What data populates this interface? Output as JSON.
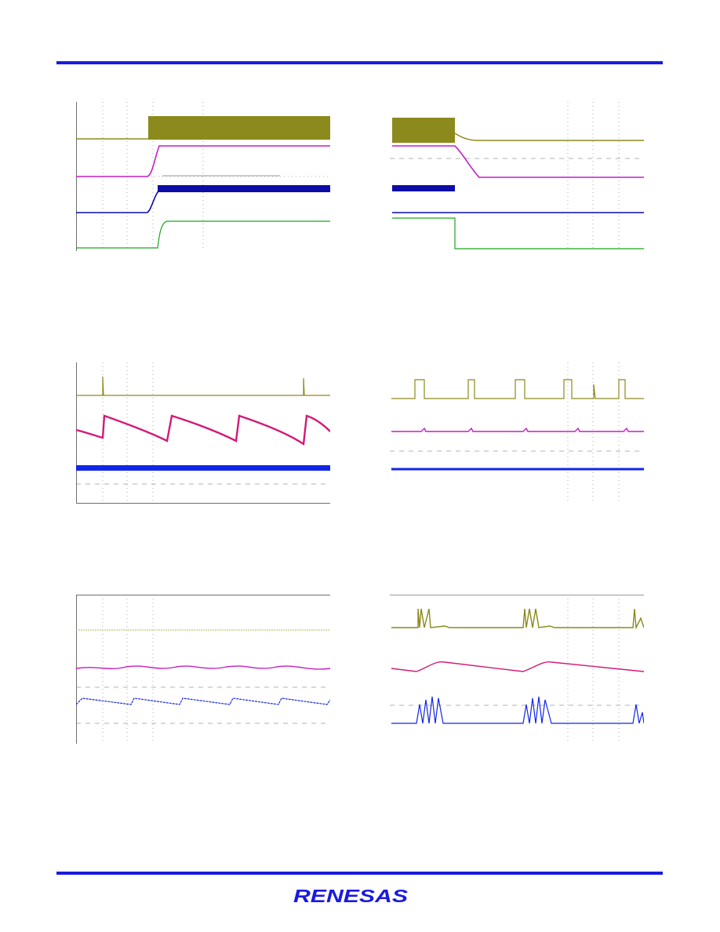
{
  "brand": {
    "name": "RENESAS",
    "color": "#1a1ae0"
  },
  "colors": {
    "ch1": "#8c8a1c",
    "ch2": "#c41ec4",
    "ch2_alt": "#d21a78",
    "ch3": "#0c0ca6",
    "ch3_alt": "#1226e8",
    "ch4": "#1fa31f",
    "grid": "#9a9a9a",
    "border": "#6e6e6e"
  },
  "scopes": [
    {
      "id": "s1",
      "traces": [
        "ch1",
        "ch2",
        "ch3",
        "ch4"
      ]
    },
    {
      "id": "s2",
      "traces": [
        "ch1",
        "ch2",
        "ch3",
        "ch4"
      ]
    },
    {
      "id": "s3",
      "traces": [
        "ch1",
        "ch2_alt",
        "ch3_alt"
      ]
    },
    {
      "id": "s4",
      "traces": [
        "ch1",
        "ch2",
        "ch3_alt"
      ]
    },
    {
      "id": "s5",
      "traces": [
        "ch1",
        "ch2",
        "ch3_alt"
      ]
    },
    {
      "id": "s6",
      "traces": [
        "ch1",
        "ch2_alt",
        "ch3_alt"
      ]
    }
  ]
}
